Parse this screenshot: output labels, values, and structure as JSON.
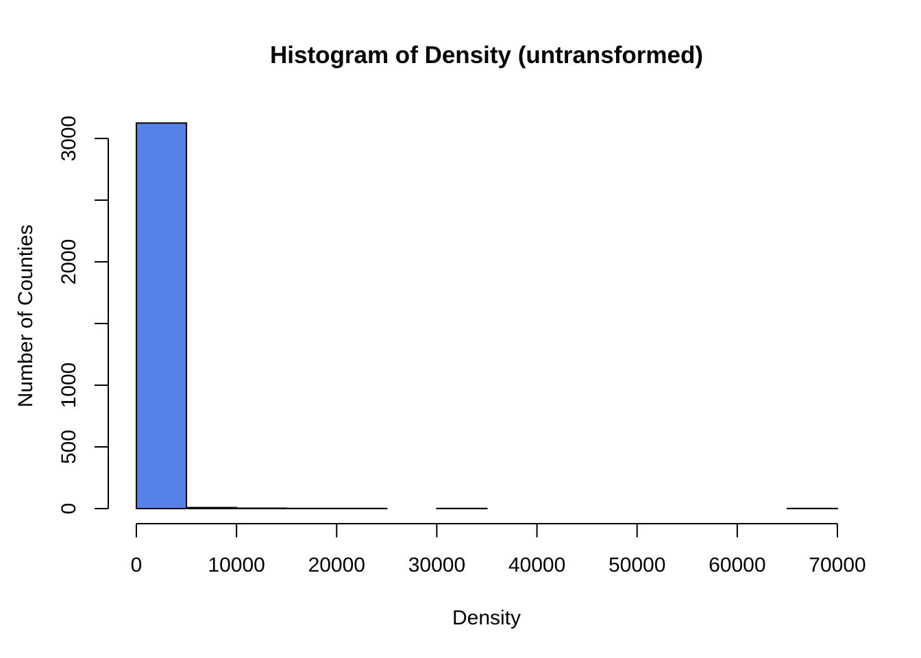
{
  "chart_data": {
    "type": "bar",
    "title": "Histogram of Density (untransformed)",
    "xlabel": "Density",
    "ylabel": "Number of Counties",
    "bar_color": "#5581E8",
    "xlim": [
      0,
      70000
    ],
    "ylim": [
      0,
      3000
    ],
    "x_ticks": [
      0,
      10000,
      20000,
      30000,
      40000,
      50000,
      60000,
      70000
    ],
    "x_tick_labels": [
      "0",
      "10000",
      "20000",
      "30000",
      "40000",
      "50000",
      "60000",
      "70000"
    ],
    "y_ticks": [
      0,
      500,
      1000,
      1500,
      2000,
      2500,
      3000
    ],
    "y_tick_labels": [
      "0",
      "500",
      "1000",
      "",
      "2000",
      "",
      "3000"
    ],
    "bins": [
      {
        "start": 0,
        "end": 5000,
        "count": 3125
      },
      {
        "start": 5000,
        "end": 10000,
        "count": 8
      },
      {
        "start": 10000,
        "end": 15000,
        "count": 3
      },
      {
        "start": 15000,
        "end": 20000,
        "count": 1
      },
      {
        "start": 20000,
        "end": 25000,
        "count": 1
      },
      {
        "start": 25000,
        "end": 30000,
        "count": 0
      },
      {
        "start": 30000,
        "end": 35000,
        "count": 1
      },
      {
        "start": 35000,
        "end": 40000,
        "count": 0
      },
      {
        "start": 40000,
        "end": 45000,
        "count": 0
      },
      {
        "start": 45000,
        "end": 50000,
        "count": 0
      },
      {
        "start": 50000,
        "end": 55000,
        "count": 0
      },
      {
        "start": 55000,
        "end": 60000,
        "count": 0
      },
      {
        "start": 60000,
        "end": 65000,
        "count": 0
      },
      {
        "start": 65000,
        "end": 70000,
        "count": 1
      }
    ]
  }
}
